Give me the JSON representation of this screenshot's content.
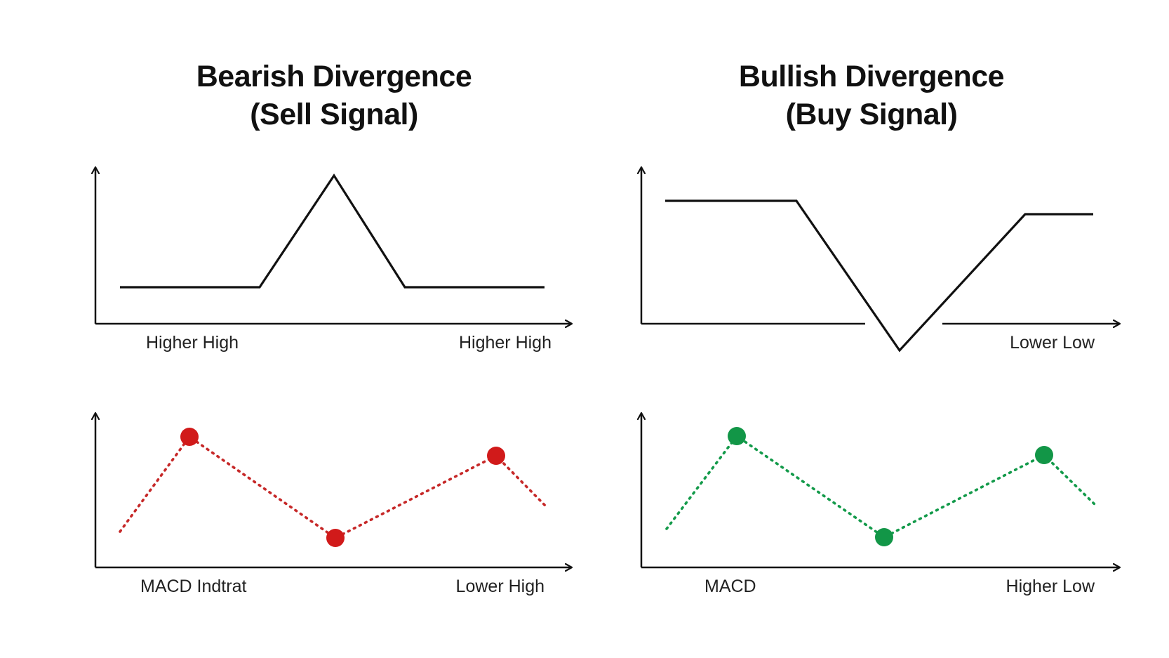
{
  "colors": {
    "bearish": "#d11a1a",
    "bearish_line": "#c62828",
    "bullish": "#129647",
    "bullish_line": "#139a4a",
    "ink": "#111111"
  },
  "bearish": {
    "title_line1": "Bearish Divergence",
    "title_line2": "(Sell Signal)",
    "price_label_left": "Higher High",
    "price_label_right": "Higher High",
    "macd_label_left": "MACD Indtrat",
    "macd_label_right": "Lower High"
  },
  "bullish": {
    "title_line1": "Bullish Divergence",
    "title_line2": "(Buy Signal)",
    "price_label_right": "Lower Low",
    "macd_label_left": "MACD",
    "macd_label_right": "Higher Low"
  }
}
